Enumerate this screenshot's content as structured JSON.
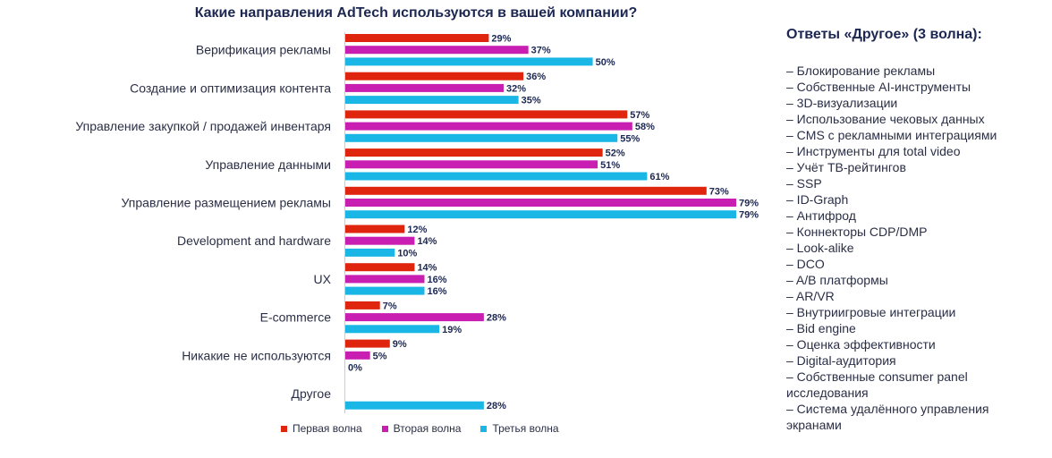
{
  "chart_data": {
    "type": "bar",
    "orientation": "horizontal",
    "title": "Какие направления AdTech используются в вашей компании?",
    "categories": [
      "Верификация рекламы",
      "Создание и оптимизация контента",
      "Управление закупкой / продажей инвентаря",
      "Управление данными",
      "Управление размещением рекламы",
      "Development and hardware",
      "UX",
      "E-commerce",
      "Никакие не используются",
      "Другое"
    ],
    "series": [
      {
        "name": "Первая волна",
        "color": "#e0250f",
        "values": [
          29,
          36,
          57,
          52,
          73,
          12,
          14,
          7,
          9,
          null
        ]
      },
      {
        "name": "Вторая волна",
        "color": "#c81fb2",
        "values": [
          37,
          32,
          58,
          51,
          79,
          14,
          16,
          28,
          5,
          null
        ]
      },
      {
        "name": "Третья волна",
        "color": "#1ab7e6",
        "values": [
          50,
          35,
          55,
          61,
          79,
          10,
          16,
          19,
          0,
          28
        ]
      }
    ],
    "value_suffix": "%",
    "xlim": [
      0,
      79
    ]
  },
  "side_panel": {
    "title": "Ответы «Другое» (3 волна):",
    "items": [
      "– Блокирование рекламы",
      "– Собственные AI-инструменты",
      "– 3D-визуализации",
      "– Использование чековых данных",
      "– CMS с рекламными интеграциями",
      "– Инструменты для total video",
      "– Учёт ТВ-рейтингов",
      "– SSP",
      "– ID-Graph",
      "– Антифрод",
      "– Коннекторы CDP/DMP",
      "– Look-alike",
      "– DCO",
      "– A/B платформы",
      "– AR/VR",
      "– Внутриигровые интеграции",
      "– Bid engine",
      "– Оценка эффективности",
      "– Digital-аудитория",
      "– Собственные consumer panel исследования",
      "– Система удалённого управления экранами"
    ]
  }
}
